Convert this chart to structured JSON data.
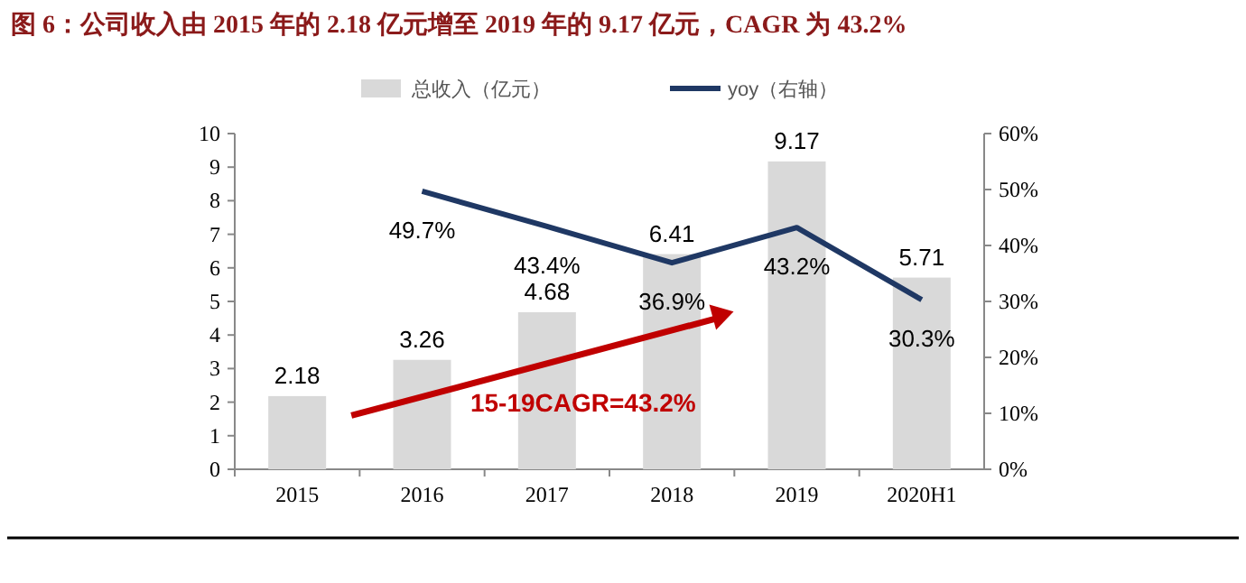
{
  "chart_data": {
    "type": "bar",
    "title": "图 6：公司收入由 2015 年的 2.18 亿元增至 2019 年的 9.17 亿元，CAGR 为 43.2%",
    "categories": [
      "2015",
      "2016",
      "2017",
      "2018",
      "2019",
      "2020H1"
    ],
    "series": [
      {
        "name": "总收入（亿元）",
        "color": "#d9d9d9",
        "values": [
          2.18,
          3.26,
          4.68,
          6.41,
          9.17,
          5.71
        ],
        "value_labels": [
          "2.18",
          "3.26",
          "4.68",
          "6.41",
          "9.17",
          "5.71"
        ]
      },
      {
        "name": "yoy（右轴）",
        "type": "line",
        "axis": "y2",
        "color": "#1f3864",
        "values": [
          null,
          49.7,
          43.4,
          36.9,
          43.2,
          30.3
        ],
        "value_labels": [
          null,
          "49.7%",
          "43.4%",
          "36.9%",
          "43.2%",
          "30.3%"
        ]
      }
    ],
    "ylim": [
      0,
      10
    ],
    "yticks": [
      0,
      1,
      2,
      3,
      4,
      5,
      6,
      7,
      8,
      9,
      10
    ],
    "y2lim": [
      0,
      60
    ],
    "y2ticks": [
      {
        "value": 0,
        "label": "0%"
      },
      {
        "value": 10,
        "label": "10%"
      },
      {
        "value": 20,
        "label": "20%"
      },
      {
        "value": 30,
        "label": "30%"
      },
      {
        "value": 40,
        "label": "40%"
      },
      {
        "value": 50,
        "label": "50%"
      },
      {
        "value": 60,
        "label": "60%"
      }
    ],
    "legend": "top",
    "grid": false,
    "annotations": [
      "15-19CAGR=43.2%"
    ]
  }
}
